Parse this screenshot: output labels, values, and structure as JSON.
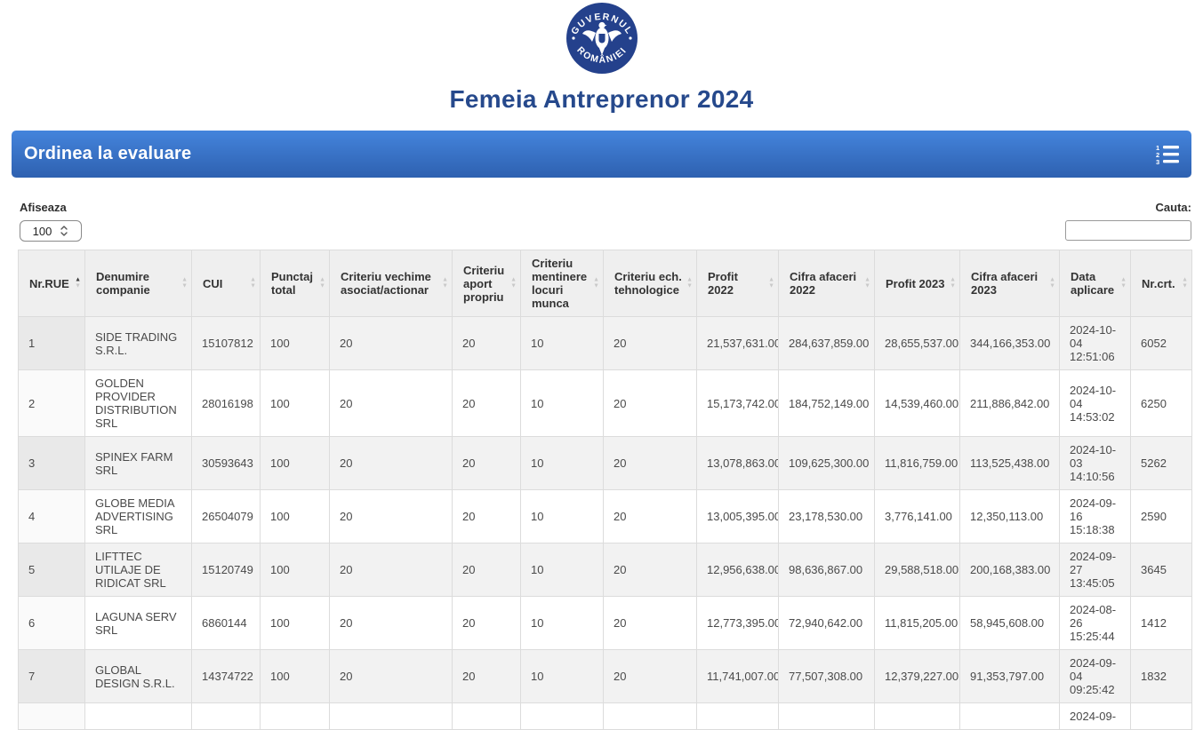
{
  "logo": {
    "top_text": "GUVERNUL",
    "bottom_text": "ROMÂNIEI"
  },
  "page": {
    "title": "Femeia Antreprenor 2024"
  },
  "panel": {
    "title": "Ordinea la evaluare",
    "icon": "ordered-list-icon"
  },
  "controls": {
    "length_label": "Afiseaza",
    "length_value": "100",
    "search_label": "Cauta:",
    "search_value": ""
  },
  "colors": {
    "panel_gradient_top": "#4484dc",
    "panel_gradient_bottom": "#2e61b0",
    "logo_blue": "#24418c",
    "title_blue": "#26498c",
    "header_bg": "#efefef",
    "stripe_bg": "#f2f2f2"
  },
  "table": {
    "columns": [
      {
        "key": "nr_rue",
        "label": "Nr.RUE",
        "sort": "asc"
      },
      {
        "key": "denumire_companie",
        "label": "Denumire companie",
        "sort": "none"
      },
      {
        "key": "cui",
        "label": "CUI",
        "sort": "none"
      },
      {
        "key": "punctaj_total",
        "label": "Punctaj total",
        "sort": "none"
      },
      {
        "key": "criteriu_vechime",
        "label": "Criteriu vechime asociat/actionar",
        "sort": "none"
      },
      {
        "key": "criteriu_aport",
        "label": "Criteriu aport propriu",
        "sort": "none"
      },
      {
        "key": "criteriu_mentinere",
        "label": "Criteriu mentinere locuri munca",
        "sort": "none"
      },
      {
        "key": "criteriu_ech",
        "label": "Criteriu ech. tehnologice",
        "sort": "none"
      },
      {
        "key": "profit_2022",
        "label": "Profit 2022",
        "sort": "none"
      },
      {
        "key": "cifra_afaceri_2022",
        "label": "Cifra afaceri 2022",
        "sort": "none"
      },
      {
        "key": "profit_2023",
        "label": "Profit 2023",
        "sort": "none"
      },
      {
        "key": "cifra_afaceri_2023",
        "label": "Cifra afaceri 2023",
        "sort": "none"
      },
      {
        "key": "data_aplicare",
        "label": "Data aplicare",
        "sort": "none"
      },
      {
        "key": "nr_crt",
        "label": "Nr.crt.",
        "sort": "none"
      }
    ],
    "rows": [
      [
        "1",
        "SIDE TRADING S.R.L.",
        "15107812",
        "100",
        "20",
        "20",
        "10",
        "20",
        "21,537,631.00",
        "284,637,859.00",
        "28,655,537.00",
        "344,166,353.00",
        "2024-10-04 12:51:06",
        "6052"
      ],
      [
        "2",
        "GOLDEN PROVIDER DISTRIBUTION SRL",
        "28016198",
        "100",
        "20",
        "20",
        "10",
        "20",
        "15,173,742.00",
        "184,752,149.00",
        "14,539,460.00",
        "211,886,842.00",
        "2024-10-04 14:53:02",
        "6250"
      ],
      [
        "3",
        "SPINEX FARM SRL",
        "30593643",
        "100",
        "20",
        "20",
        "10",
        "20",
        "13,078,863.00",
        "109,625,300.00",
        "11,816,759.00",
        "113,525,438.00",
        "2024-10-03 14:10:56",
        "5262"
      ],
      [
        "4",
        "GLOBE MEDIA ADVERTISING SRL",
        "26504079",
        "100",
        "20",
        "20",
        "10",
        "20",
        "13,005,395.00",
        "23,178,530.00",
        "3,776,141.00",
        "12,350,113.00",
        "2024-09-16 15:18:38",
        "2590"
      ],
      [
        "5",
        "LIFTTEC UTILAJE DE RIDICAT SRL",
        "15120749",
        "100",
        "20",
        "20",
        "10",
        "20",
        "12,956,638.00",
        "98,636,867.00",
        "29,588,518.00",
        "200,168,383.00",
        "2024-09-27 13:45:05",
        "3645"
      ],
      [
        "6",
        "LAGUNA SERV SRL",
        "6860144",
        "100",
        "20",
        "20",
        "10",
        "20",
        "12,773,395.00",
        "72,940,642.00",
        "11,815,205.00",
        "58,945,608.00",
        "2024-08-26 15:25:44",
        "1412"
      ],
      [
        "7",
        "GLOBAL DESIGN S.R.L.",
        "14374722",
        "100",
        "20",
        "20",
        "10",
        "20",
        "11,741,007.00",
        "77,507,308.00",
        "12,379,227.00",
        "91,353,797.00",
        "2024-09-04 09:25:42",
        "1832"
      ],
      [
        "",
        "",
        "",
        "",
        "",
        "",
        "",
        "",
        "",
        "",
        "",
        "",
        "2024-09-",
        ""
      ]
    ]
  }
}
